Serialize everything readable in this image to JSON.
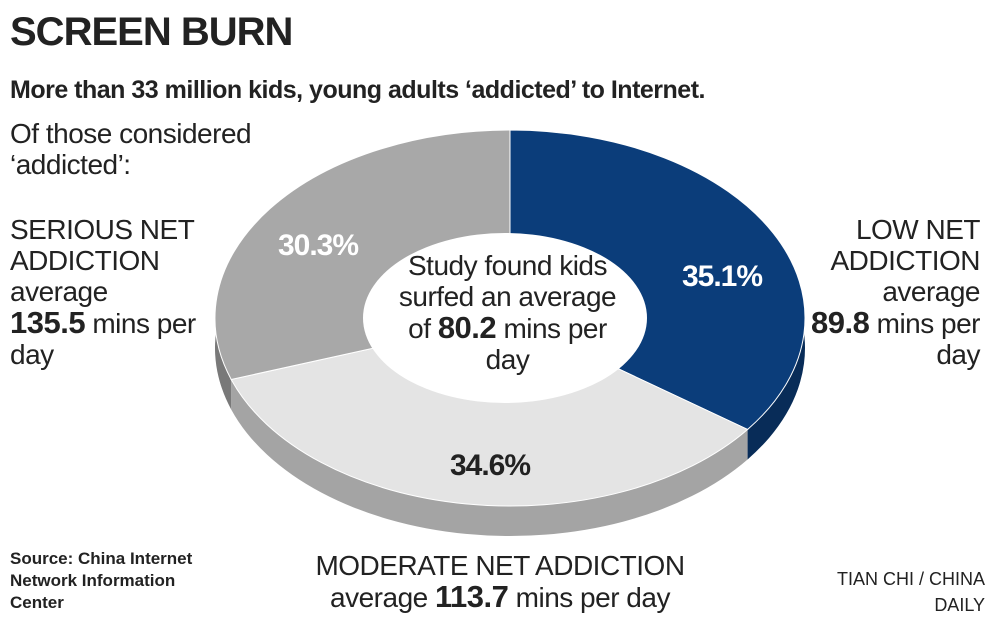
{
  "chart_data": {
    "type": "pie",
    "title": "SCREEN BURN",
    "subtitle": "More than 33 million kids, young adults ‘addicted’ to Internet.",
    "note": "Of those considered ‘addicted’:",
    "categories": [
      "LOW NET ADDICTION",
      "MODERATE NET ADDICTION",
      "SERIOUS NET ADDICTION"
    ],
    "values": [
      35.1,
      34.6,
      30.3
    ],
    "value_labels": [
      "35.1%",
      "34.6%",
      "30.3%"
    ],
    "colors": [
      "#0b3d7a",
      "#e4e4e4",
      "#a8a8a8"
    ],
    "averages": [
      {
        "prefix": "average",
        "value": 89.8,
        "suffix": "mins per day"
      },
      {
        "prefix": "average",
        "value": 113.7,
        "suffix": "mins per day"
      },
      {
        "prefix": "average",
        "value": 135.5,
        "suffix": "mins per day"
      }
    ],
    "center_note": {
      "before": "Study found kids surfed an average of",
      "value": 80.2,
      "after": "mins per day"
    },
    "source": "Source: China Internet Network Information Center",
    "credit": "TIAN CHI / CHINA DAILY"
  }
}
